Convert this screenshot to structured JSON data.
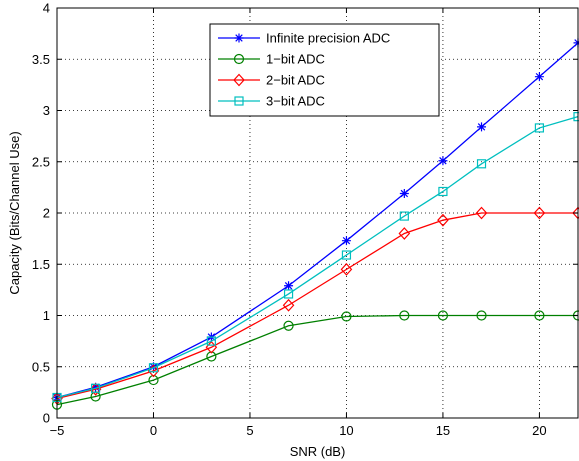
{
  "chart_data": {
    "type": "line",
    "xlabel": "SNR (dB)",
    "ylabel": "Capacity (Bits/Channel Use)",
    "xlim": [
      -5,
      22
    ],
    "ylim": [
      0,
      4
    ],
    "xticks": [
      -5,
      0,
      5,
      10,
      15,
      20
    ],
    "yticks": [
      0,
      0.5,
      1,
      1.5,
      2,
      2.5,
      3,
      3.5,
      4
    ],
    "grid": true,
    "legend_position": "top-center",
    "series": [
      {
        "name": "Infinite precision ADC",
        "color": "#0000ff",
        "marker": "asterisk",
        "x": [
          -5,
          -3,
          0,
          3,
          7,
          10,
          13,
          15,
          17,
          20,
          22
        ],
        "y": [
          0.2,
          0.3,
          0.5,
          0.79,
          1.29,
          1.73,
          2.19,
          2.51,
          2.84,
          3.33,
          3.66
        ]
      },
      {
        "name": "1−bit ADC",
        "color": "#008000",
        "marker": "circle",
        "x": [
          -5,
          -3,
          0,
          3,
          7,
          10,
          13,
          15,
          17,
          20,
          22
        ],
        "y": [
          0.13,
          0.21,
          0.37,
          0.6,
          0.9,
          0.99,
          1.0,
          1.0,
          1.0,
          1.0,
          1.0
        ]
      },
      {
        "name": "2−bit ADC",
        "color": "#ff0000",
        "marker": "diamond",
        "x": [
          -5,
          -3,
          0,
          3,
          7,
          10,
          13,
          15,
          17,
          20,
          22
        ],
        "y": [
          0.19,
          0.28,
          0.46,
          0.69,
          1.1,
          1.45,
          1.8,
          1.93,
          2.0,
          2.0,
          2.0
        ]
      },
      {
        "name": "3−bit ADC",
        "color": "#00bfbf",
        "marker": "square",
        "x": [
          -5,
          -3,
          0,
          3,
          7,
          10,
          13,
          15,
          17,
          20,
          22
        ],
        "y": [
          0.2,
          0.29,
          0.49,
          0.75,
          1.21,
          1.59,
          1.97,
          2.21,
          2.48,
          2.83,
          2.94
        ]
      }
    ]
  }
}
